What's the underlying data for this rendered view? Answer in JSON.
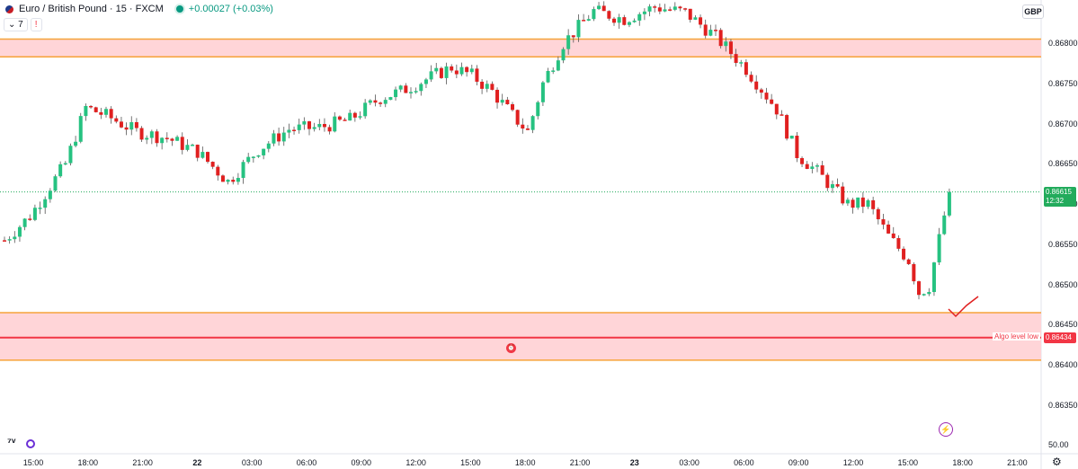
{
  "header": {
    "symbol_title": "Euro / British Pound · 15 · FXCM",
    "change": "+0.00027 (+0.03%)",
    "indicator_count": "7",
    "warning": "!"
  },
  "currency": "GBP",
  "current_price": {
    "value": "0.86615",
    "countdown": "12:32"
  },
  "algo_level": {
    "label": "Algo level low",
    "price": "0.86434"
  },
  "scale_mode_label": "50.00",
  "colors": {
    "up": "#26c281",
    "down": "#e02020",
    "zone_fill": "#ffd5d8",
    "zone_border": "#f6a33a",
    "algo_line": "#f23645",
    "bg": "#ffffff"
  },
  "chart_data": {
    "type": "candlestick",
    "title": "Euro / British Pound · 15 · FXCM",
    "xlabel": "",
    "ylabel": "",
    "ylim": [
      0.8632,
      0.8686
    ],
    "y_ticks": [
      "0.86800",
      "0.86750",
      "0.86700",
      "0.86650",
      "0.86600",
      "0.86550",
      "0.86500",
      "0.86450",
      "0.86400",
      "0.86350"
    ],
    "x_ticks": [
      {
        "label": "15:00",
        "bold": false
      },
      {
        "label": "18:00",
        "bold": false
      },
      {
        "label": "21:00",
        "bold": false
      },
      {
        "label": "22",
        "bold": true
      },
      {
        "label": "03:00",
        "bold": false
      },
      {
        "label": "06:00",
        "bold": false
      },
      {
        "label": "09:00",
        "bold": false
      },
      {
        "label": "12:00",
        "bold": false
      },
      {
        "label": "15:00",
        "bold": false
      },
      {
        "label": "18:00",
        "bold": false
      },
      {
        "label": "21:00",
        "bold": false
      },
      {
        "label": "23",
        "bold": true
      },
      {
        "label": "03:00",
        "bold": false
      },
      {
        "label": "06:00",
        "bold": false
      },
      {
        "label": "09:00",
        "bold": false
      },
      {
        "label": "12:00",
        "bold": false
      },
      {
        "label": "15:00",
        "bold": false
      },
      {
        "label": "18:00",
        "bold": false
      },
      {
        "label": "21:00",
        "bold": false
      }
    ],
    "zones": [
      {
        "from": 0.86783,
        "to": 0.86805
      },
      {
        "from": 0.86406,
        "to": 0.86465
      }
    ],
    "hlines": [
      {
        "value": 0.86434,
        "label": "Algo level low"
      }
    ],
    "last_price": 0.86615,
    "path_points": [
      [
        0,
        0.86555
      ],
      [
        5,
        0.86585
      ],
      [
        12,
        0.8665
      ],
      [
        16,
        0.8672
      ],
      [
        20,
        0.8671
      ],
      [
        26,
        0.8669
      ],
      [
        32,
        0.86682
      ],
      [
        38,
        0.86665
      ],
      [
        44,
        0.86628
      ],
      [
        50,
        0.86668
      ],
      [
        56,
        0.86693
      ],
      [
        62,
        0.86695
      ],
      [
        68,
        0.86705
      ],
      [
        74,
        0.86732
      ],
      [
        78,
        0.8674
      ],
      [
        82,
        0.86752
      ],
      [
        88,
        0.8677
      ],
      [
        92,
        0.8676
      ],
      [
        96,
        0.8674
      ],
      [
        100,
        0.8671
      ],
      [
        103,
        0.8669
      ],
      [
        106,
        0.8675
      ],
      [
        110,
        0.868
      ],
      [
        116,
        0.8684
      ],
      [
        122,
        0.8683
      ],
      [
        128,
        0.86845
      ],
      [
        134,
        0.86838
      ],
      [
        140,
        0.86808
      ],
      [
        146,
        0.86768
      ],
      [
        152,
        0.86718
      ],
      [
        156,
        0.86662
      ],
      [
        160,
        0.8664
      ],
      [
        166,
        0.866
      ],
      [
        170,
        0.866
      ],
      [
        174,
        0.8656
      ],
      [
        178,
        0.8653
      ],
      [
        180,
        0.8649
      ],
      [
        182,
        0.86498
      ],
      [
        186,
        0.86615
      ]
    ]
  }
}
